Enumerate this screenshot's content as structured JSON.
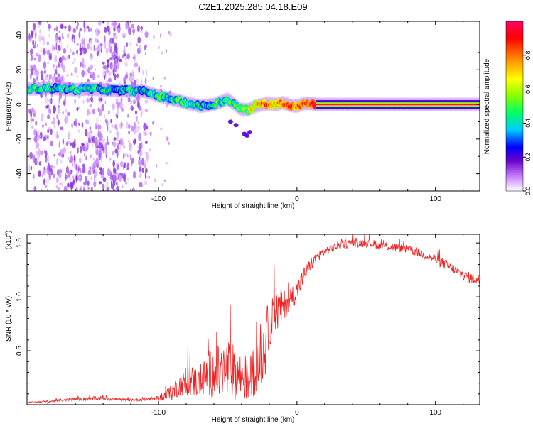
{
  "title": "C2E1.2025.285.04.18.E09",
  "chart_data": [
    {
      "type": "heatmap",
      "xlabel": "Height of straight line (km)",
      "ylabel": "Frequency (Hz)",
      "xlim": [
        -195,
        132
      ],
      "ylim": [
        -50,
        48
      ],
      "xticks": [
        -100,
        0,
        100
      ],
      "xtick_labels": [
        "-100",
        "0",
        "100"
      ],
      "yticks": [
        -40,
        -20,
        0,
        20,
        40
      ],
      "ytick_labels": [
        "-40",
        "-20",
        "0",
        "20",
        "40"
      ],
      "colorbar": {
        "label": "Normalized spectral amplitude",
        "range": [
          0,
          1
        ],
        "ticks": [
          0,
          0.2,
          0.4,
          0.6,
          0.8
        ],
        "tick_labels": [
          "0.0",
          "0.2",
          "0.4",
          "0.6",
          "0.8"
        ],
        "colors": [
          "#ffffff",
          "#cc88ff",
          "#6600cc",
          "#0000ff",
          "#00ccff",
          "#00ff66",
          "#88ff00",
          "#ffff00",
          "#ff8800",
          "#ff0000",
          "#ff0066"
        ]
      },
      "ridge": {
        "x": [
          -190,
          -180,
          -170,
          -160,
          -150,
          -140,
          -130,
          -120,
          -110,
          -100,
          -90,
          -80,
          -70,
          -60,
          -50,
          -45,
          -40,
          -35,
          -30,
          -25,
          -20,
          -15,
          -10,
          -5,
          0,
          5,
          10,
          15,
          30,
          60,
          90,
          110,
          132
        ],
        "y": [
          9,
          9.5,
          9,
          8.5,
          9,
          8.5,
          8,
          8,
          7.5,
          5,
          3,
          1,
          -1,
          0,
          3,
          0,
          -3,
          -3,
          -1,
          0,
          0.5,
          0,
          1,
          -0.5,
          -1,
          0.5,
          0.5,
          0,
          0,
          0,
          0,
          0,
          0
        ],
        "amplitude": [
          0.5,
          0.5,
          0.45,
          0.5,
          0.5,
          0.45,
          0.4,
          0.5,
          0.45,
          0.5,
          0.5,
          0.55,
          0.45,
          0.5,
          0.55,
          0.5,
          0.6,
          0.65,
          0.75,
          0.85,
          0.85,
          0.8,
          0.85,
          0.9,
          0.85,
          0.9,
          0.9,
          1,
          1,
          1,
          1,
          1,
          1
        ]
      }
    },
    {
      "type": "line",
      "xlabel": "Height of straight line (km)",
      "ylabel": "SNR (10 * v/v)",
      "y_multiplier_label": "(x10",
      "y_multiplier_exp": "4",
      "y_multiplier_close": ")",
      "xlim": [
        -195,
        132
      ],
      "ylim": [
        0,
        1.58
      ],
      "xticks": [
        -100,
        0,
        100
      ],
      "xtick_labels": [
        "-100",
        "0",
        "100"
      ],
      "yticks": [
        0.5,
        1.0,
        1.5
      ],
      "ytick_labels": [
        "0.5",
        "1.0",
        "1.5"
      ],
      "color": "#ee2222",
      "series": [
        {
          "name": "SNR",
          "x": [
            -195,
            -180,
            -160,
            -140,
            -120,
            -110,
            -100,
            -95,
            -90,
            -85,
            -80,
            -75,
            -70,
            -65,
            -60,
            -55,
            -50,
            -45,
            -40,
            -35,
            -30,
            -25,
            -22,
            -20,
            -15,
            -10,
            -5,
            0,
            5,
            10,
            15,
            20,
            30,
            40,
            50,
            60,
            70,
            80,
            90,
            100,
            110,
            120,
            132
          ],
          "y": [
            0.02,
            0.03,
            0.05,
            0.06,
            0.04,
            0.05,
            0.06,
            0.08,
            0.12,
            0.18,
            0.2,
            0.22,
            0.2,
            0.28,
            0.3,
            0.28,
            0.32,
            0.3,
            0.25,
            0.22,
            0.35,
            0.48,
            0.6,
            0.75,
            0.85,
            0.92,
            0.98,
            1.05,
            1.2,
            1.3,
            1.38,
            1.42,
            1.48,
            1.5,
            1.5,
            1.48,
            1.46,
            1.44,
            1.4,
            1.35,
            1.28,
            1.2,
            1.15
          ],
          "noise": [
            0.005,
            0.01,
            0.015,
            0.02,
            0.01,
            0.015,
            0.02,
            0.05,
            0.08,
            0.1,
            0.12,
            0.15,
            0.13,
            0.2,
            0.25,
            0.28,
            0.3,
            0.25,
            0.22,
            0.2,
            0.25,
            0.3,
            0.3,
            0.22,
            0.2,
            0.15,
            0.12,
            0.1,
            0.08,
            0.06,
            0.05,
            0.04,
            0.04,
            0.04,
            0.04,
            0.04,
            0.04,
            0.04,
            0.04,
            0.05,
            0.05,
            0.05,
            0.05
          ]
        }
      ]
    }
  ]
}
